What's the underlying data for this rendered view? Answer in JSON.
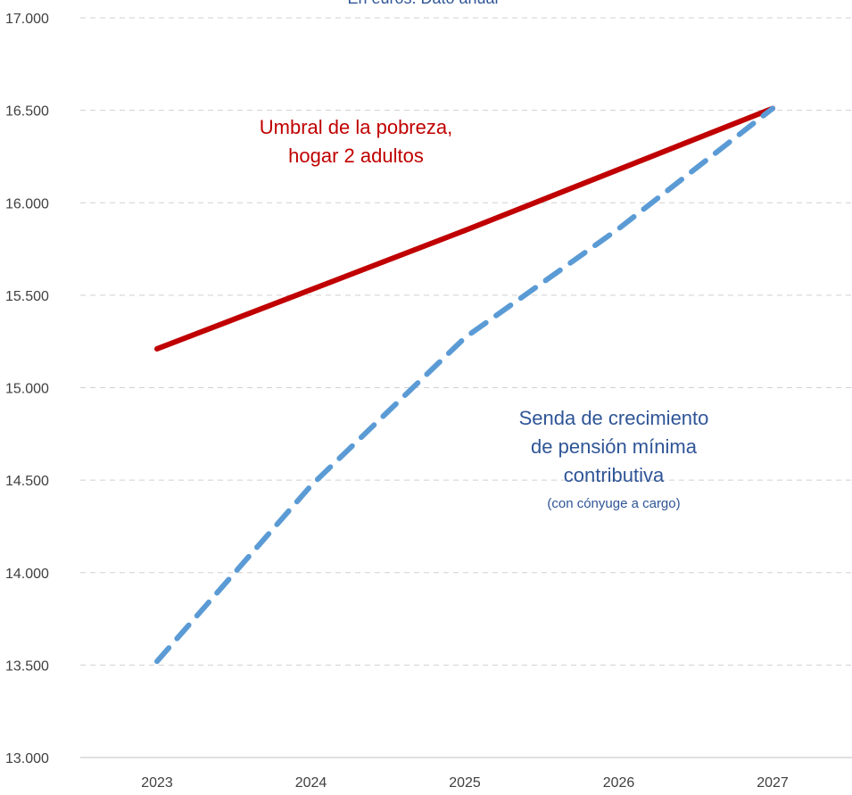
{
  "chart_data": {
    "type": "line",
    "title": "",
    "subtitle": "En euros. Dato anual",
    "xlabel": "",
    "ylabel": "",
    "x": [
      "2023",
      "2024",
      "2025",
      "2026",
      "2027"
    ],
    "ylim": [
      13000,
      17000
    ],
    "yticks": [
      "13.000",
      "13.500",
      "14.000",
      "14.500",
      "15.000",
      "15.500",
      "16.000",
      "16.500",
      "17.000"
    ],
    "grid": true,
    "legend": "none",
    "series": [
      {
        "name": "Umbral de la pobreza, hogar 2 adultos",
        "values": [
          15210,
          15530,
          15850,
          16180,
          16510
        ],
        "color": "#C00000",
        "style": "solid"
      },
      {
        "name": "Senda de crecimiento de pensión mínima contributiva",
        "values": [
          13520,
          14470,
          15270,
          15860,
          16510
        ],
        "color": "#5B9BD5",
        "style": "dashed"
      }
    ],
    "annotations": {
      "red_line1": "Umbral de la pobreza,",
      "red_line2": "hogar 2 adultos",
      "blue_line1": "Senda de crecimiento",
      "blue_line2": "de pensión mínima",
      "blue_line3": "contributiva",
      "blue_note": "(con cónyuge a cargo)"
    }
  }
}
